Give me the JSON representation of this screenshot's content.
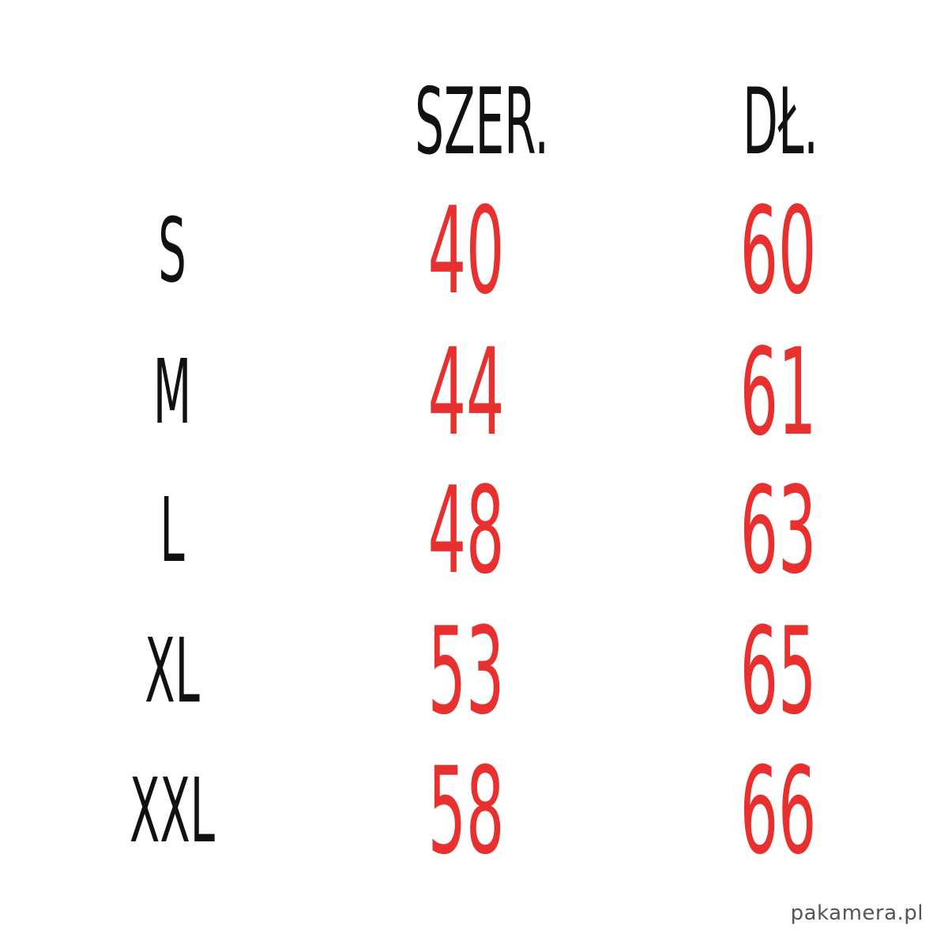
{
  "headers": {
    "width": "SZER.",
    "length": "DŁ."
  },
  "rows": [
    {
      "size": "S",
      "width": "40",
      "length": "60"
    },
    {
      "size": "M",
      "width": "44",
      "length": "61"
    },
    {
      "size": "L",
      "width": "48",
      "length": "63"
    },
    {
      "size": "XL",
      "width": "53",
      "length": "65"
    },
    {
      "size": "XXL",
      "width": "58",
      "length": "66"
    }
  ],
  "watermark": "pakamera.pl",
  "colors": {
    "label": "#111111",
    "value": "#e8302f",
    "watermark": "#555555"
  }
}
